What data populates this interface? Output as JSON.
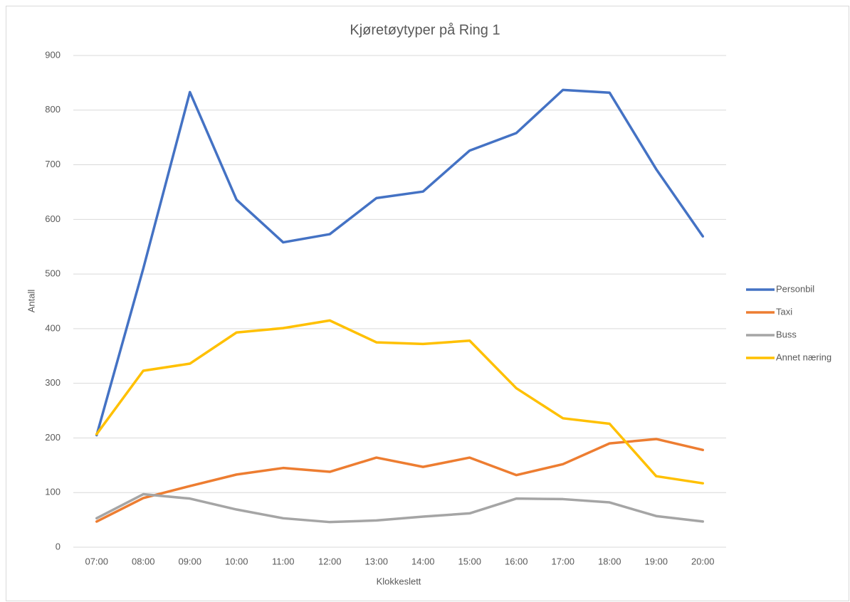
{
  "chart_data": {
    "type": "line",
    "title": "Kjøretøytyper på Ring 1",
    "x_label": "Klokkeslett",
    "y_label": "Antall",
    "categories": [
      "07:00",
      "08:00",
      "09:00",
      "10:00",
      "11:00",
      "12:00",
      "13:00",
      "14:00",
      "15:00",
      "16:00",
      "17:00",
      "18:00",
      "19:00",
      "20:00"
    ],
    "series": [
      {
        "name": "Personbil",
        "color": "#4472c4",
        "values": [
          205,
          510,
          833,
          636,
          558,
          573,
          639,
          651,
          726,
          758,
          837,
          832,
          692,
          569
        ]
      },
      {
        "name": "Taxi",
        "color": "#ed7d31",
        "values": [
          47,
          90,
          112,
          133,
          145,
          138,
          164,
          147,
          164,
          132,
          152,
          190,
          198,
          178
        ]
      },
      {
        "name": "Buss",
        "color": "#a5a5a5",
        "values": [
          53,
          97,
          89,
          69,
          53,
          46,
          49,
          56,
          62,
          89,
          88,
          82,
          57,
          47
        ]
      },
      {
        "name": "Annet næring",
        "color": "#ffc000",
        "values": [
          207,
          323,
          336,
          393,
          401,
          415,
          375,
          372,
          378,
          291,
          236,
          226,
          130,
          117
        ]
      }
    ],
    "ylim": [
      0,
      900
    ],
    "yticks": [
      0,
      100,
      200,
      300,
      400,
      500,
      600,
      700,
      800,
      900
    ],
    "grid": true,
    "legend": "right"
  }
}
